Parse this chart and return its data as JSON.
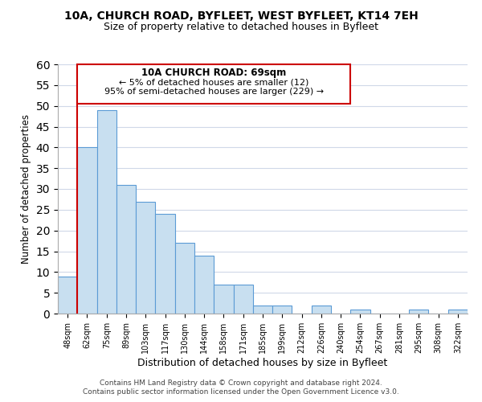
{
  "title1": "10A, CHURCH ROAD, BYFLEET, WEST BYFLEET, KT14 7EH",
  "title2": "Size of property relative to detached houses in Byfleet",
  "xlabel": "Distribution of detached houses by size in Byfleet",
  "ylabel": "Number of detached properties",
  "bin_labels": [
    "48sqm",
    "62sqm",
    "75sqm",
    "89sqm",
    "103sqm",
    "117sqm",
    "130sqm",
    "144sqm",
    "158sqm",
    "171sqm",
    "185sqm",
    "199sqm",
    "212sqm",
    "226sqm",
    "240sqm",
    "254sqm",
    "267sqm",
    "281sqm",
    "295sqm",
    "308sqm",
    "322sqm"
  ],
  "bar_heights": [
    9,
    40,
    49,
    31,
    27,
    24,
    17,
    14,
    7,
    7,
    2,
    2,
    0,
    2,
    0,
    1,
    0,
    0,
    1,
    0,
    1
  ],
  "bar_color": "#c8dff0",
  "bar_edge_color": "#5b9bd5",
  "vline_color": "#cc0000",
  "annotation_title": "10A CHURCH ROAD: 69sqm",
  "annotation_line1": "← 5% of detached houses are smaller (12)",
  "annotation_line2": "95% of semi-detached houses are larger (229) →",
  "annotation_box_edge": "#cc0000",
  "ylim": [
    0,
    60
  ],
  "yticks": [
    0,
    5,
    10,
    15,
    20,
    25,
    30,
    35,
    40,
    45,
    50,
    55,
    60
  ],
  "footer1": "Contains HM Land Registry data © Crown copyright and database right 2024.",
  "footer2": "Contains public sector information licensed under the Open Government Licence v3.0.",
  "bg_color": "#ffffff",
  "grid_color": "#d0d8e8"
}
